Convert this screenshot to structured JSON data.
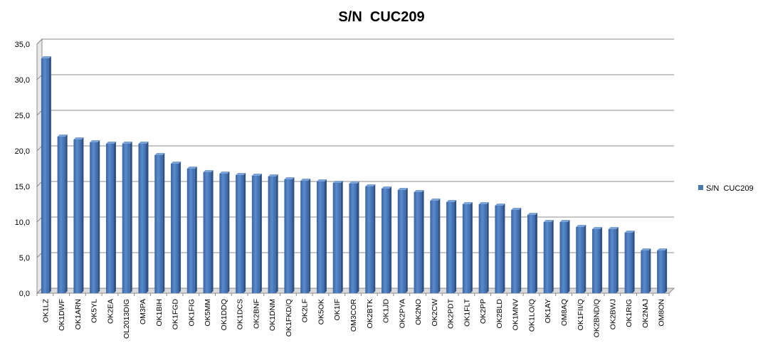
{
  "chart_data": {
    "type": "bar",
    "title": "S/N  CUC209",
    "xlabel": "",
    "ylabel": "",
    "ylim": [
      0,
      35
    ],
    "yticks": [
      "0,0",
      "5,0",
      "10,0",
      "15,0",
      "20,0",
      "25,0",
      "30,0",
      "35,0"
    ],
    "grid": true,
    "legend_position": "right",
    "bar_color": "#4a78b4",
    "categories": [
      "OK1LZ",
      "OK1DWF",
      "OK1ARN",
      "OK5YL",
      "OK2EA",
      "OL2013DIG",
      "OM3PA",
      "OK1BIH",
      "OK1FGD",
      "OK1FIG",
      "OK5MM",
      "OK1DDQ",
      "OK1DCS",
      "OK2BNF",
      "OK1DNM",
      "OK1FKD/Q",
      "OK2LF",
      "OK5OK",
      "OK1IF",
      "OM3COR",
      "OK2BTK",
      "OK1JD",
      "OK2PYA",
      "OK2NO",
      "OK2CW",
      "OK2PDT",
      "OK1FLT",
      "OK2PP",
      "OK2BLD",
      "OK1MNV",
      "OK1LO/Q",
      "OK1AY",
      "OM8AQ",
      "OK1FII/Q",
      "OK2BND/Q",
      "OK2BWJ",
      "OK1RIG",
      "OK2NAJ",
      "OM8ON"
    ],
    "series": [
      {
        "name": "S/N  CUC209",
        "values": [
          33.0,
          22.0,
          21.6,
          21.2,
          21.0,
          21.0,
          21.0,
          19.4,
          18.2,
          17.5,
          17.0,
          16.8,
          16.6,
          16.5,
          16.4,
          16.0,
          15.8,
          15.7,
          15.5,
          15.4,
          15.0,
          14.7,
          14.5,
          14.2,
          13.0,
          12.8,
          12.5,
          12.5,
          12.3,
          11.7,
          11.0,
          10.0,
          10.0,
          9.3,
          9.0,
          9.0,
          8.5,
          6.0,
          6.0
        ]
      }
    ]
  }
}
